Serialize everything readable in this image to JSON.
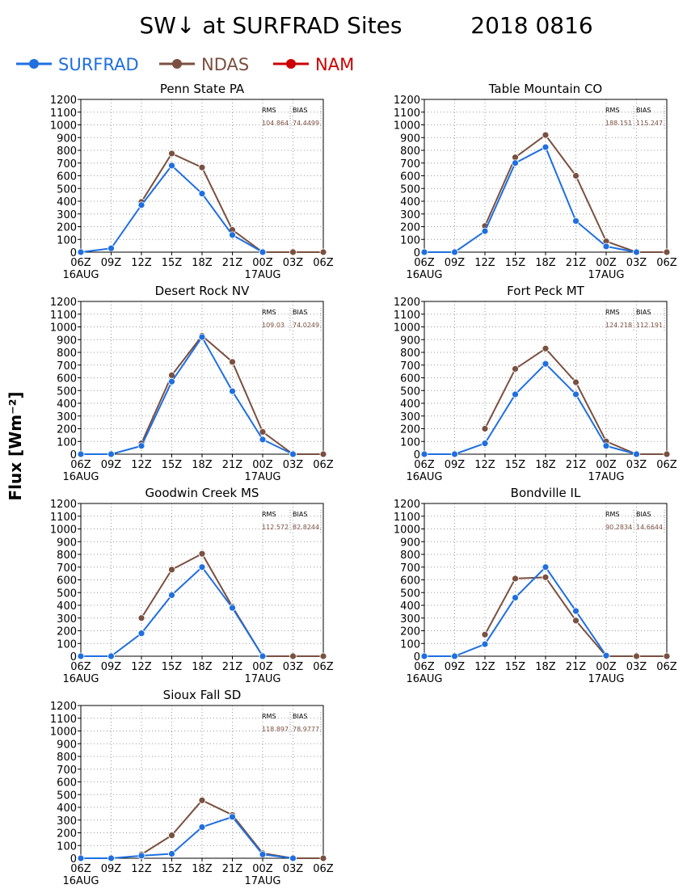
{
  "title": "SW↓ at SURFRAD Sites",
  "date": "2018 0816",
  "ylabel": "Flux [Wm⁻²]",
  "legend": [
    {
      "name": "SURFRAD",
      "color": "#1f6fe0"
    },
    {
      "name": "NDAS",
      "color": "#7a5040"
    },
    {
      "name": "NAM",
      "color": "#cc0000"
    }
  ],
  "x_ticks": [
    "06Z",
    "09Z",
    "12Z",
    "15Z",
    "18Z",
    "21Z",
    "00Z",
    "03Z",
    "06Z"
  ],
  "date_labels": [
    {
      "tick": 0,
      "text": "16AUG"
    },
    {
      "tick": 6,
      "text": "17AUG"
    }
  ],
  "y_ticks": [
    0,
    100,
    200,
    300,
    400,
    500,
    600,
    700,
    800,
    900,
    1000,
    1100,
    1200
  ],
  "stat_labels": {
    "rms": "RMS",
    "bias": "BIAS"
  },
  "chart_data": [
    {
      "type": "line",
      "title": "Penn State PA",
      "ylim": [
        0,
        1200
      ],
      "grid": true,
      "rms": "104.864",
      "bias": "74.4499",
      "series": [
        {
          "name": "SURFRAD",
          "values": [
            0,
            30,
            370,
            680,
            460,
            135,
            0,
            null,
            null
          ]
        },
        {
          "name": "NDAS",
          "values": [
            null,
            null,
            395,
            775,
            665,
            175,
            0,
            0,
            0
          ]
        }
      ]
    },
    {
      "type": "line",
      "title": "Table Mountain CO",
      "ylim": [
        0,
        1200
      ],
      "grid": true,
      "rms": "188.151",
      "bias": "115.247",
      "series": [
        {
          "name": "SURFRAD",
          "values": [
            0,
            0,
            165,
            700,
            825,
            245,
            45,
            0,
            null
          ]
        },
        {
          "name": "NDAS",
          "values": [
            null,
            null,
            205,
            745,
            920,
            600,
            85,
            0,
            0
          ]
        }
      ]
    },
    {
      "type": "line",
      "title": "Desert Rock NV",
      "ylim": [
        0,
        1200
      ],
      "grid": true,
      "rms": "109.03",
      "bias": "74.0249",
      "series": [
        {
          "name": "SURFRAD",
          "values": [
            0,
            0,
            65,
            570,
            920,
            495,
            115,
            0,
            null
          ]
        },
        {
          "name": "NDAS",
          "values": [
            null,
            null,
            85,
            620,
            930,
            725,
            175,
            0,
            0
          ]
        }
      ]
    },
    {
      "type": "line",
      "title": "Fort Peck MT",
      "ylim": [
        0,
        1200
      ],
      "grid": true,
      "rms": "124.218",
      "bias": "112.191",
      "series": [
        {
          "name": "SURFRAD",
          "values": [
            0,
            0,
            85,
            470,
            710,
            470,
            65,
            0,
            null
          ]
        },
        {
          "name": "NDAS",
          "values": [
            null,
            null,
            200,
            670,
            830,
            565,
            100,
            0,
            0
          ]
        }
      ]
    },
    {
      "type": "line",
      "title": "Goodwin Creek MS",
      "ylim": [
        0,
        1200
      ],
      "grid": true,
      "rms": "112.572",
      "bias": "82.8244",
      "series": [
        {
          "name": "SURFRAD",
          "values": [
            0,
            0,
            180,
            480,
            700,
            380,
            0,
            null,
            null
          ]
        },
        {
          "name": "NDAS",
          "values": [
            null,
            null,
            300,
            680,
            805,
            390,
            0,
            0,
            0
          ]
        }
      ]
    },
    {
      "type": "line",
      "title": "Bondville IL",
      "ylim": [
        0,
        1200
      ],
      "grid": true,
      "rms": "90.2834",
      "bias": "14.6644",
      "series": [
        {
          "name": "SURFRAD",
          "values": [
            0,
            0,
            95,
            460,
            700,
            355,
            5,
            null,
            null
          ]
        },
        {
          "name": "NDAS",
          "values": [
            null,
            null,
            170,
            610,
            620,
            280,
            0,
            0,
            0
          ]
        }
      ]
    },
    {
      "type": "line",
      "title": "Sioux Fall SD",
      "ylim": [
        0,
        1200
      ],
      "grid": true,
      "rms": "118.897",
      "bias": "78.9777",
      "series": [
        {
          "name": "SURFRAD",
          "values": [
            0,
            0,
            20,
            35,
            245,
            325,
            30,
            0,
            null
          ]
        },
        {
          "name": "NDAS",
          "values": [
            null,
            null,
            30,
            180,
            455,
            340,
            40,
            0,
            0
          ]
        }
      ]
    }
  ]
}
